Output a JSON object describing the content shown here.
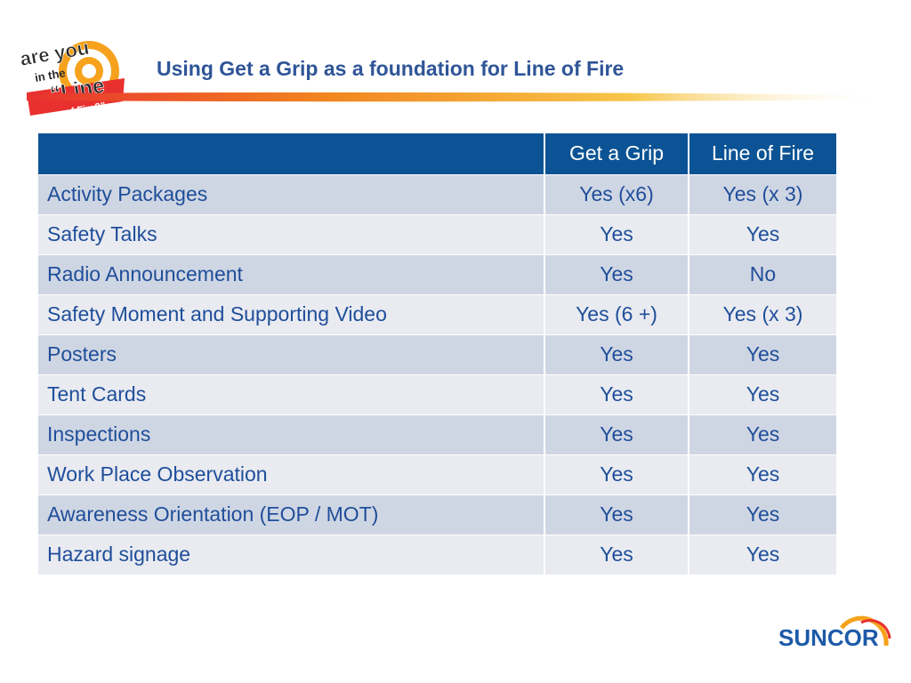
{
  "slide": {
    "title": "Using Get a Grip as a foundation for Line of Fire"
  },
  "logo": {
    "line1": "are you",
    "line2": "in the",
    "line3": "“Line",
    "line4": "of Fire?”",
    "icon": "target-logo-icon"
  },
  "table": {
    "headers": [
      "",
      "Get a Grip",
      "Line of Fire"
    ],
    "rows": [
      {
        "item": "Activity Packages",
        "get_a_grip": "Yes (x6)",
        "line_of_fire": "Yes (x 3)"
      },
      {
        "item": "Safety Talks",
        "get_a_grip": "Yes",
        "line_of_fire": "Yes"
      },
      {
        "item": "Radio Announcement",
        "get_a_grip": "Yes",
        "line_of_fire": "No"
      },
      {
        "item": "Safety Moment and Supporting Video",
        "get_a_grip": "Yes (6 +)",
        "line_of_fire": "Yes (x 3)"
      },
      {
        "item": "Posters",
        "get_a_grip": "Yes",
        "line_of_fire": "Yes"
      },
      {
        "item": "Tent Cards",
        "get_a_grip": "Yes",
        "line_of_fire": "Yes"
      },
      {
        "item": "Inspections",
        "get_a_grip": "Yes",
        "line_of_fire": "Yes"
      },
      {
        "item": "Work Place Observation",
        "get_a_grip": "Yes",
        "line_of_fire": "Yes"
      },
      {
        "item": "Awareness Orientation (EOP / MOT)",
        "get_a_grip": "Yes",
        "line_of_fire": "Yes"
      },
      {
        "item": "Hazard signage",
        "get_a_grip": "Yes",
        "line_of_fire": "Yes"
      }
    ]
  },
  "footer": {
    "brand": "SUNCOR",
    "icon": "suncor-sun-icon"
  },
  "colors": {
    "title": "#2f5597",
    "header_bg": "#0b5394",
    "row_odd": "#cfd6e3",
    "row_even": "#e9ebf1",
    "text": "#1f4e9a"
  }
}
